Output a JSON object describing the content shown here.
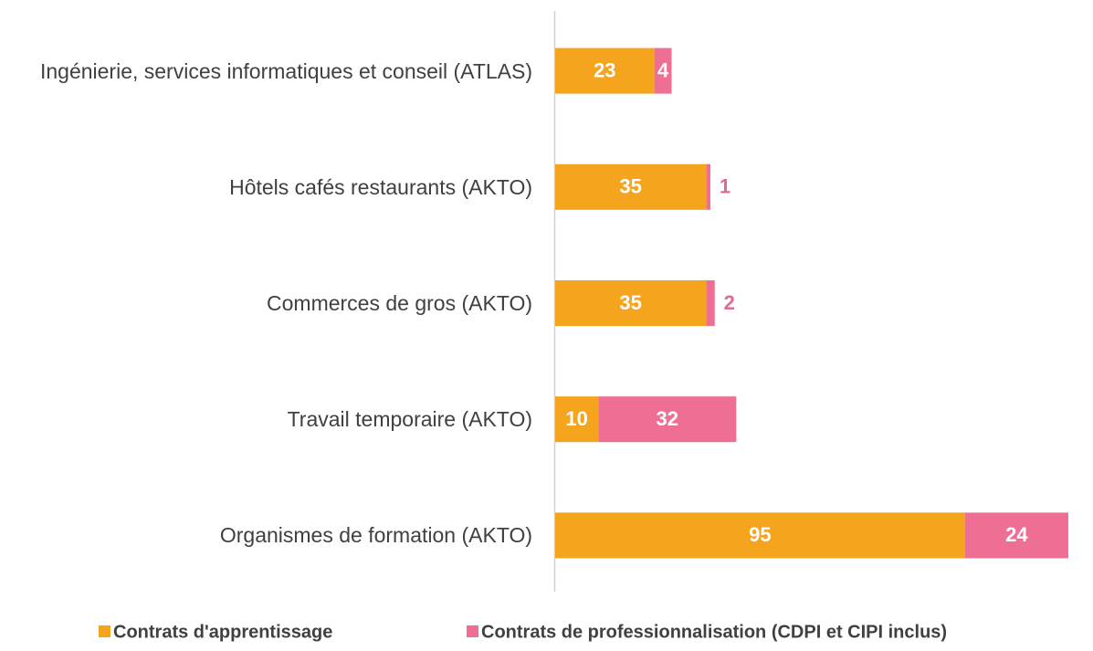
{
  "chart_data": {
    "type": "stacked-bar-horizontal",
    "categories": [
      "Ingénierie, services informatiques et conseil (ATLAS)",
      "Hôtels cafés restaurants (AKTO)",
      "Commerces de gros (AKTO)",
      "Travail temporaire (AKTO)",
      "Organismes de formation (AKTO)"
    ],
    "series": [
      {
        "name": "Contrats d'apprentissage",
        "color": "#f5a41e",
        "values": [
          23,
          35,
          35,
          10,
          95
        ]
      },
      {
        "name": "Contrats de professionnalisation (CDPI et CIPI inclus)",
        "color": "#ee6f93",
        "values": [
          4,
          1,
          2,
          32,
          24
        ]
      }
    ],
    "legend": "bottom"
  }
}
